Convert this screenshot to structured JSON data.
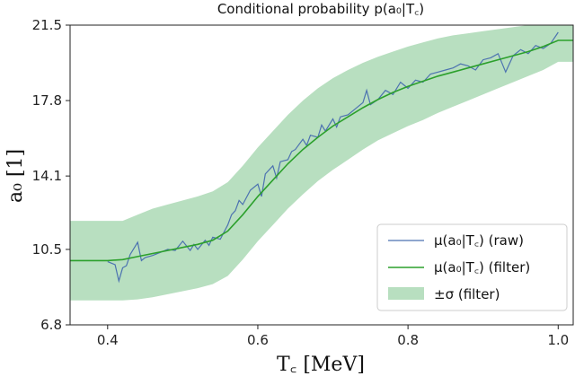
{
  "chart_data": {
    "type": "line",
    "title": "Conditional probability p(a₀|T꜀)",
    "xlabel": "T꜀ [MeV]",
    "ylabel": "a₀ [1]",
    "xlim": [
      0.35,
      1.02
    ],
    "ylim": [
      6.8,
      21.5
    ],
    "xticks": [
      0.4,
      0.6,
      0.8,
      1.0
    ],
    "xtick_labels": [
      "0.4",
      "0.6",
      "0.8",
      "1.0"
    ],
    "yticks": [
      6.8,
      10.5,
      14.1,
      17.8,
      21.5
    ],
    "ytick_labels": [
      "6.8",
      "10.5",
      "14.1",
      "17.8",
      "21.5"
    ],
    "grid": false,
    "legend_position": "bottom-right",
    "colors": {
      "raw": "#4c72b0",
      "filter": "#2ca02c",
      "band": "#b8dfc0"
    },
    "series": [
      {
        "name": "μ(a₀|T꜀) (raw)",
        "kind": "line",
        "x": [
          0.4,
          0.41,
          0.415,
          0.42,
          0.425,
          0.43,
          0.44,
          0.445,
          0.45,
          0.46,
          0.47,
          0.48,
          0.49,
          0.5,
          0.51,
          0.515,
          0.52,
          0.53,
          0.535,
          0.54,
          0.55,
          0.56,
          0.565,
          0.57,
          0.575,
          0.58,
          0.59,
          0.6,
          0.605,
          0.61,
          0.62,
          0.625,
          0.63,
          0.64,
          0.645,
          0.65,
          0.66,
          0.665,
          0.67,
          0.68,
          0.685,
          0.69,
          0.7,
          0.705,
          0.71,
          0.72,
          0.73,
          0.74,
          0.745,
          0.75,
          0.76,
          0.77,
          0.78,
          0.79,
          0.8,
          0.81,
          0.82,
          0.83,
          0.84,
          0.85,
          0.86,
          0.87,
          0.88,
          0.89,
          0.9,
          0.91,
          0.92,
          0.93,
          0.94,
          0.95,
          0.96,
          0.97,
          0.98,
          0.99,
          1.0
        ],
        "y": [
          9.9,
          9.75,
          8.95,
          9.6,
          9.7,
          10.25,
          10.85,
          9.95,
          10.1,
          10.2,
          10.35,
          10.5,
          10.45,
          10.9,
          10.45,
          10.75,
          10.5,
          10.95,
          10.7,
          11.1,
          11.0,
          11.7,
          12.2,
          12.4,
          12.9,
          12.7,
          13.4,
          13.7,
          13.1,
          14.2,
          14.6,
          14.0,
          14.8,
          14.9,
          15.3,
          15.4,
          15.9,
          15.6,
          16.1,
          16.0,
          16.6,
          16.3,
          16.9,
          16.5,
          17.0,
          17.1,
          17.4,
          17.7,
          18.3,
          17.6,
          17.85,
          18.3,
          18.1,
          18.7,
          18.4,
          18.8,
          18.7,
          19.1,
          19.2,
          19.3,
          19.4,
          19.6,
          19.5,
          19.3,
          19.8,
          19.9,
          20.1,
          19.2,
          20.0,
          20.3,
          20.1,
          20.5,
          20.35,
          20.6,
          21.15
        ]
      },
      {
        "name": "μ(a₀|T꜀) (filter)",
        "kind": "line",
        "x": [
          0.35,
          0.4,
          0.42,
          0.44,
          0.46,
          0.48,
          0.5,
          0.52,
          0.54,
          0.56,
          0.58,
          0.6,
          0.62,
          0.64,
          0.66,
          0.68,
          0.7,
          0.72,
          0.74,
          0.76,
          0.78,
          0.8,
          0.82,
          0.84,
          0.86,
          0.88,
          0.9,
          0.92,
          0.94,
          0.96,
          0.98,
          1.0,
          1.02
        ],
        "y": [
          9.95,
          9.95,
          10.0,
          10.15,
          10.3,
          10.45,
          10.6,
          10.75,
          10.95,
          11.4,
          12.2,
          13.1,
          13.9,
          14.7,
          15.4,
          16.0,
          16.55,
          17.0,
          17.45,
          17.85,
          18.2,
          18.5,
          18.75,
          19.0,
          19.2,
          19.4,
          19.6,
          19.8,
          20.0,
          20.2,
          20.45,
          20.75,
          20.75
        ]
      },
      {
        "name": "±σ (filter)",
        "kind": "band",
        "x": [
          0.35,
          0.4,
          0.42,
          0.44,
          0.46,
          0.48,
          0.5,
          0.52,
          0.54,
          0.56,
          0.58,
          0.6,
          0.62,
          0.64,
          0.66,
          0.68,
          0.7,
          0.72,
          0.74,
          0.76,
          0.78,
          0.8,
          0.82,
          0.84,
          0.86,
          0.88,
          0.9,
          0.92,
          0.94,
          0.96,
          0.98,
          1.0,
          1.02
        ],
        "lower": [
          8.0,
          8.0,
          8.0,
          8.05,
          8.15,
          8.3,
          8.45,
          8.6,
          8.8,
          9.2,
          10.0,
          10.9,
          11.7,
          12.5,
          13.2,
          13.85,
          14.4,
          14.9,
          15.4,
          15.85,
          16.2,
          16.55,
          16.85,
          17.2,
          17.5,
          17.8,
          18.1,
          18.4,
          18.7,
          19.0,
          19.3,
          19.7,
          19.7
        ],
        "upper": [
          11.9,
          11.9,
          11.9,
          12.2,
          12.5,
          12.7,
          12.9,
          13.1,
          13.35,
          13.8,
          14.6,
          15.5,
          16.3,
          17.1,
          17.8,
          18.4,
          18.9,
          19.3,
          19.65,
          19.95,
          20.2,
          20.45,
          20.65,
          20.85,
          21.0,
          21.1,
          21.2,
          21.3,
          21.4,
          21.5,
          21.6,
          21.8,
          21.8
        ]
      }
    ]
  }
}
